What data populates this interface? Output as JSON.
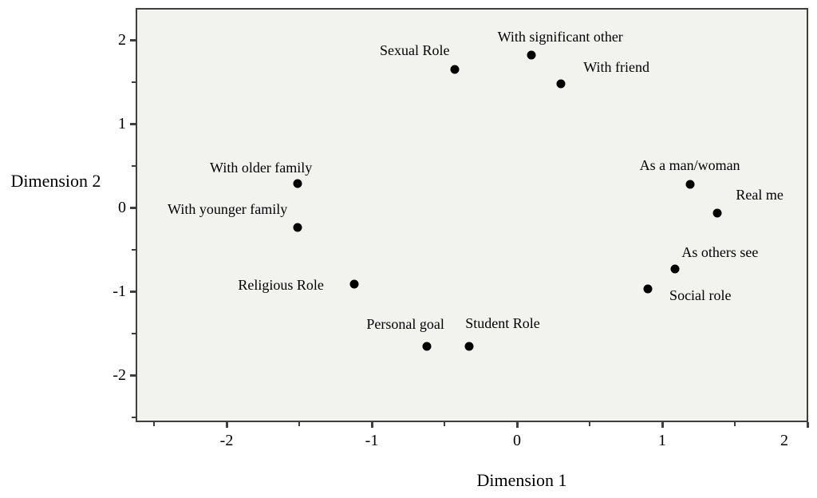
{
  "chart_data": {
    "type": "scatter",
    "title": "",
    "xlabel": "Dimension 1",
    "ylabel": "Dimension 2",
    "xlim": [
      -2.63,
      2.01
    ],
    "ylim": [
      -2.56,
      2.38
    ],
    "x_ticks": [
      -2,
      -1,
      0,
      1,
      2
    ],
    "y_ticks": [
      2,
      1,
      0,
      -1,
      -2
    ],
    "minor_tick_step": 0.5,
    "grid": false,
    "legend": "none",
    "marker": "filled-black-circle",
    "points": [
      {
        "label": "Sexual Role",
        "x": -0.43,
        "y": 1.65,
        "label_offset": [
          -50,
          -24
        ]
      },
      {
        "label": "With significant other",
        "x": 0.1,
        "y": 1.82,
        "label_offset": [
          36,
          -23
        ]
      },
      {
        "label": "With friend",
        "x": 0.3,
        "y": 1.48,
        "label_offset": [
          70,
          -21
        ]
      },
      {
        "label": "With older family",
        "x": -1.51,
        "y": 0.29,
        "label_offset": [
          -46,
          -20
        ]
      },
      {
        "label": "With younger family",
        "x": -1.51,
        "y": -0.24,
        "label_offset": [
          -88,
          -23
        ]
      },
      {
        "label": "As a man/woman",
        "x": 1.19,
        "y": 0.28,
        "label_offset": [
          0,
          -24
        ]
      },
      {
        "label": "Real me",
        "x": 1.38,
        "y": -0.07,
        "label_offset": [
          53,
          -23
        ]
      },
      {
        "label": "As others see",
        "x": 1.09,
        "y": -0.73,
        "label_offset": [
          56,
          -21
        ]
      },
      {
        "label": "Social role",
        "x": 0.9,
        "y": -0.97,
        "label_offset": [
          66,
          8
        ]
      },
      {
        "label": "Religious Role",
        "x": -1.12,
        "y": -0.91,
        "label_offset": [
          -92,
          1
        ]
      },
      {
        "label": "Personal goal",
        "x": -0.62,
        "y": -1.66,
        "label_offset": [
          -27,
          -28
        ]
      },
      {
        "label": "Student Role",
        "x": -0.33,
        "y": -1.66,
        "label_offset": [
          42,
          -29
        ]
      }
    ]
  },
  "colors": {
    "point": "#000000",
    "plot_background": "#f2f2ef",
    "frame": "#3f3f3f",
    "text": "#000000",
    "page_background": "#ffffff"
  }
}
